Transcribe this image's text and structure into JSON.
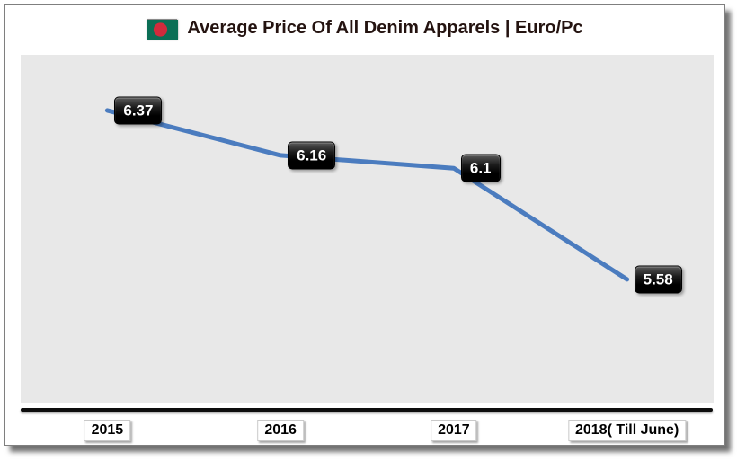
{
  "header": {
    "title": "Average Price Of All Denim Apparels | Euro/Pc",
    "title_color": "#241310",
    "flag": {
      "name": "bangladesh-flag",
      "green": "#0b6e55",
      "red": "#d02b3c"
    }
  },
  "chart_data": {
    "type": "line",
    "title": "Average Price Of All Denim Apparels | Euro/Pc",
    "categories": [
      "2015",
      "2016",
      "2017",
      "2018( Till June)"
    ],
    "series": [
      {
        "name": "Average Price (Euro/Pc)",
        "values": [
          6.37,
          6.16,
          6.1,
          5.58
        ]
      }
    ],
    "data_labels": [
      "6.37",
      "6.16",
      "6.1",
      "5.58"
    ],
    "xlabel": "",
    "ylabel": "",
    "ylim": [
      5.0,
      6.63
    ],
    "grid": false,
    "legend": "none",
    "line_color": "#4b7cbf",
    "line_width": 5,
    "plot_bg": "#e8e8e8",
    "label_bg": "#000000",
    "label_text_color": "#ffffff"
  }
}
